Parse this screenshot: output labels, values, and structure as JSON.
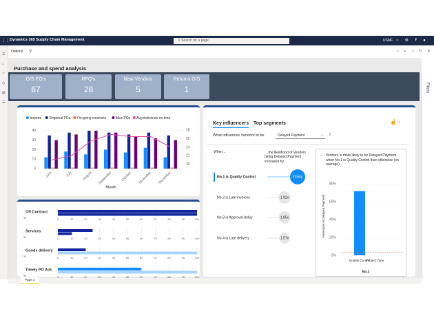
{
  "app": {
    "title": "Dynamics 365 Supply Chain Management",
    "search_placeholder": "Search for a page",
    "company": "USMF"
  },
  "toolbar": {
    "options": "Options"
  },
  "page_title": "Purchase and spend analysis",
  "kpis": [
    {
      "label": "O/S PO's",
      "value": 67
    },
    {
      "label": "RFQ's",
      "value": 28
    },
    {
      "label": "New Vendors",
      "value": 5
    },
    {
      "label": "Returns O/S",
      "value": 1
    }
  ],
  "combo_chart": {
    "type": "bar",
    "x_label": "Month",
    "categories": [
      "June",
      "July",
      "August",
      "September",
      "October",
      "November",
      "December"
    ],
    "series": [
      {
        "name": "Imports",
        "color": "#118dff",
        "values": [
          12,
          18,
          15,
          20,
          17,
          22,
          12
        ]
      },
      {
        "name": "Regional POs",
        "color": "#12239e",
        "values": [
          35,
          38,
          40,
          38,
          36,
          38,
          35
        ]
      },
      {
        "name": "On-going contracts",
        "color": "#e66c37",
        "values": [
          1,
          1,
          1,
          1,
          1,
          1,
          1
        ]
      },
      {
        "name": "Misc POs",
        "color": "#6b007b",
        "values": [
          30,
          36,
          40,
          38,
          34,
          32,
          30
        ]
      },
      {
        "name": "Avg deliveries on-time",
        "color": "#e044a7",
        "axis": "y2",
        "values": [
          21,
          22,
          25.5,
          27,
          26.5,
          26.5,
          24
        ]
      }
    ],
    "ylim": [
      0,
      45
    ],
    "yticks": [
      0,
      10,
      20,
      30,
      40
    ],
    "y2lim": [
      19,
      29
    ],
    "y2ticks": [
      20,
      22,
      24,
      26,
      28
    ]
  },
  "bar_chart": {
    "type": "bar",
    "orientation": "horizontal",
    "categories": [
      "Off Contract",
      "Services",
      "Goods delivery",
      "Timely PO Ack"
    ],
    "unit_label": "%",
    "series": [
      {
        "colors": [
          "#12239e",
          "#12239e",
          "#12239e",
          "#118dff"
        ],
        "values": [
          100,
          25,
          20,
          60
        ]
      },
      {
        "colors": [
          "#12239e",
          "#12239e",
          "#a8d4ff",
          "#a8d4ff"
        ],
        "values": [
          100,
          10,
          100,
          100
        ]
      }
    ],
    "xlim": [
      0,
      100
    ],
    "xticks": [
      0,
      10,
      20,
      30,
      40,
      50,
      60,
      70,
      80,
      90,
      100
    ]
  },
  "key_influencers": {
    "tabs": [
      "Key influencers",
      "Top segments"
    ],
    "question": "What influences Vendors to be",
    "dropdown": "Delayed Payment",
    "help": "?",
    "col_when": "When...",
    "col_increase": "....the likelihood of Vendors being Delayed Payment increases by",
    "rows": [
      {
        "label": "No.1 is Quality Control",
        "value_label": "Infinity"
      },
      {
        "label": "No.2 is Late invoices",
        "value": 1.92,
        "value_label": "1.92x"
      },
      {
        "label": "No.3 is Approval delay",
        "value": 1.85,
        "value_label": "1.85x"
      },
      {
        "label": "No.4 is Late delivery",
        "value": 1.57,
        "value_label": "1.57x"
      }
    ],
    "detail": {
      "text": "Vendors is more likely to be Delayed Payment when No.1 is Quality Control than otherwise (on average).",
      "chart": {
        "type": "bar",
        "y_label": "%Vendors is Delayed Payment",
        "x_label": "No.1",
        "categories": [
          "Quality Control",
          "Project Type"
        ],
        "values": [
          72,
          0
        ],
        "color": "#118dff",
        "average": 3,
        "ylim": [
          0,
          88
        ],
        "yticks": [
          {
            "value": 0,
            "label": "0%"
          },
          {
            "value": 20,
            "label": "20%"
          },
          {
            "value": 40,
            "label": "40%"
          },
          {
            "value": 60,
            "label": "60%"
          },
          {
            "value": 80,
            "label": "80%"
          }
        ]
      }
    }
  },
  "filters": "Filters",
  "page_tab": "Page 1"
}
